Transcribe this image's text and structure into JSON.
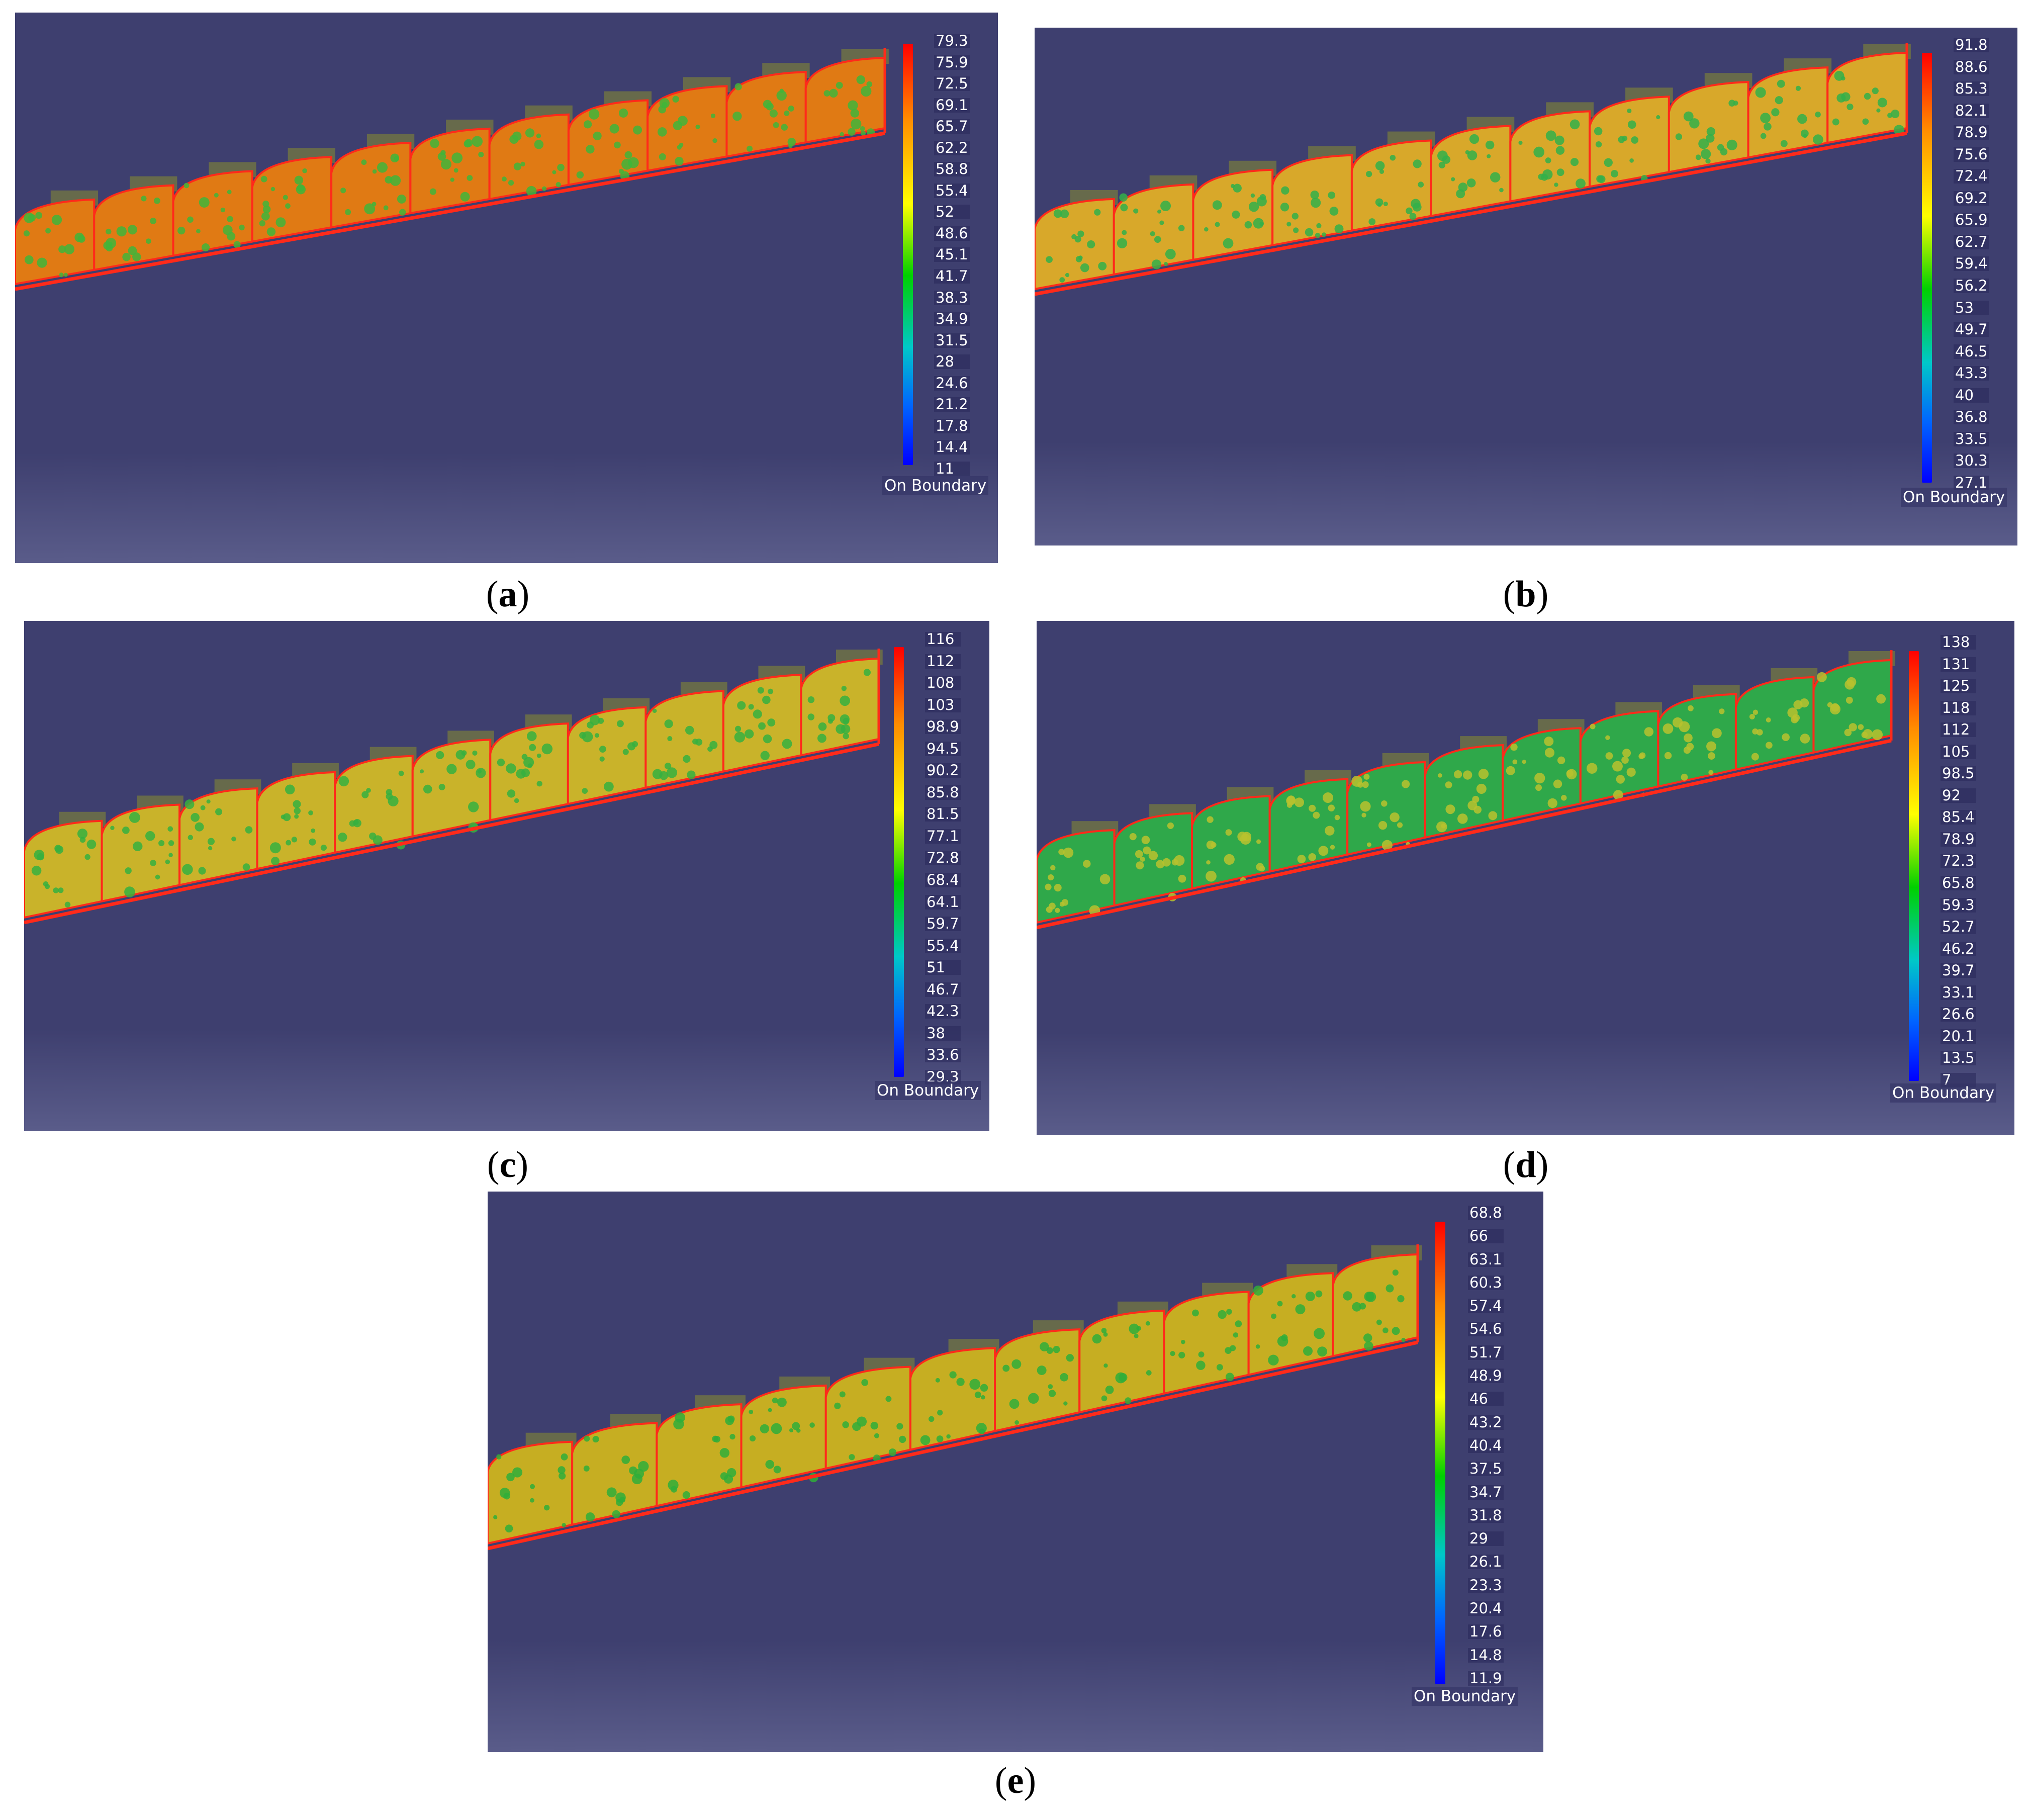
{
  "colors": {
    "background": "#3e3f6f",
    "background_bottom": "#5a5c8a",
    "edge": "#ff2a1a",
    "hatch": "#6b6f47"
  },
  "legend_caption": "On Boundary",
  "panels": [
    {
      "id": "a",
      "label": "a",
      "surface_fill": "#e07a14",
      "spot_color": "#3fb53a",
      "scale_values": [
        "79.3",
        "75.9",
        "72.5",
        "69.1",
        "65.7",
        "62.2",
        "58.8",
        "55.4",
        "52",
        "48.6",
        "45.1",
        "41.7",
        "38.3",
        "34.9",
        "31.5",
        "28",
        "24.6",
        "21.2",
        "17.8",
        "14.4",
        "11"
      ]
    },
    {
      "id": "b",
      "label": "b",
      "surface_fill": "#d8a82a",
      "spot_color": "#33b04a",
      "scale_values": [
        "91.8",
        "88.6",
        "85.3",
        "82.1",
        "78.9",
        "75.6",
        "72.4",
        "69.2",
        "65.9",
        "62.7",
        "59.4",
        "56.2",
        "53",
        "49.7",
        "46.5",
        "43.3",
        "40",
        "36.8",
        "33.5",
        "30.3",
        "27.1"
      ]
    },
    {
      "id": "c",
      "label": "c",
      "surface_fill": "#c9b32a",
      "spot_color": "#36b040",
      "scale_values": [
        "116",
        "112",
        "108",
        "103",
        "98.9",
        "94.5",
        "90.2",
        "85.8",
        "81.5",
        "77.1",
        "72.8",
        "68.4",
        "64.1",
        "59.7",
        "55.4",
        "51",
        "46.7",
        "42.3",
        "38",
        "33.6",
        "29.3"
      ]
    },
    {
      "id": "d",
      "label": "d",
      "surface_fill": "#2fa84a",
      "spot_color": "#b8c22e",
      "scale_values": [
        "138",
        "131",
        "125",
        "118",
        "112",
        "105",
        "98.5",
        "92",
        "85.4",
        "78.9",
        "72.3",
        "65.8",
        "59.3",
        "52.7",
        "46.2",
        "39.7",
        "33.1",
        "26.6",
        "20.1",
        "13.5",
        "7"
      ]
    },
    {
      "id": "e",
      "label": "e",
      "surface_fill": "#c6ae22",
      "spot_color": "#2fae3a",
      "scale_values": [
        "68.8",
        "66",
        "63.1",
        "60.3",
        "57.4",
        "54.6",
        "51.7",
        "48.9",
        "46",
        "43.2",
        "40.4",
        "37.5",
        "34.7",
        "31.8",
        "29",
        "26.1",
        "23.3",
        "20.4",
        "17.6",
        "14.8",
        "11.9"
      ]
    }
  ]
}
